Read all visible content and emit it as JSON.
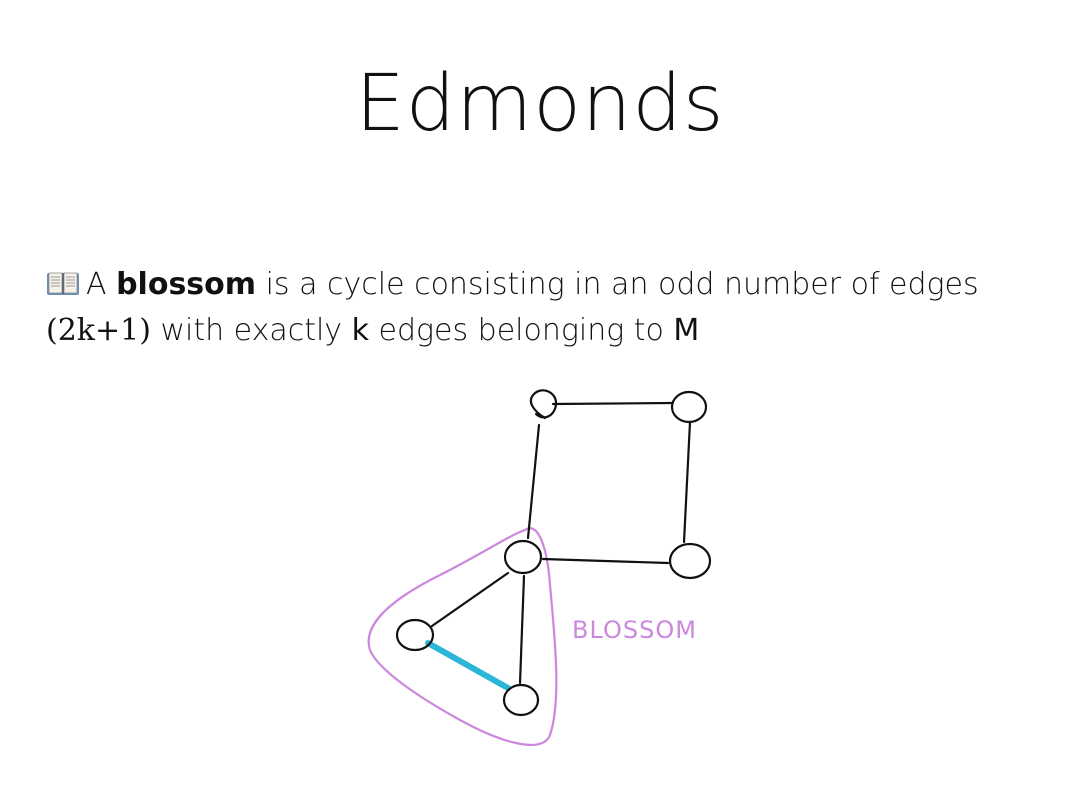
{
  "slide": {
    "title": "Edmonds",
    "definition": {
      "icon": "open-book-icon",
      "prefix": "A",
      "term": "blossom",
      "middle": "is a cycle consisting in an odd number of edges",
      "formula": "(2k+1)",
      "with_exactly": "with exactly",
      "k": "k",
      "edges_belonging": "edges belonging to",
      "matching": "M"
    }
  },
  "diagram": {
    "blossom_label": "BLOSSOM",
    "colors": {
      "edge": "#111111",
      "matched_edge": "#2bb5d6",
      "blossom_outline": "#cc88dd"
    }
  }
}
